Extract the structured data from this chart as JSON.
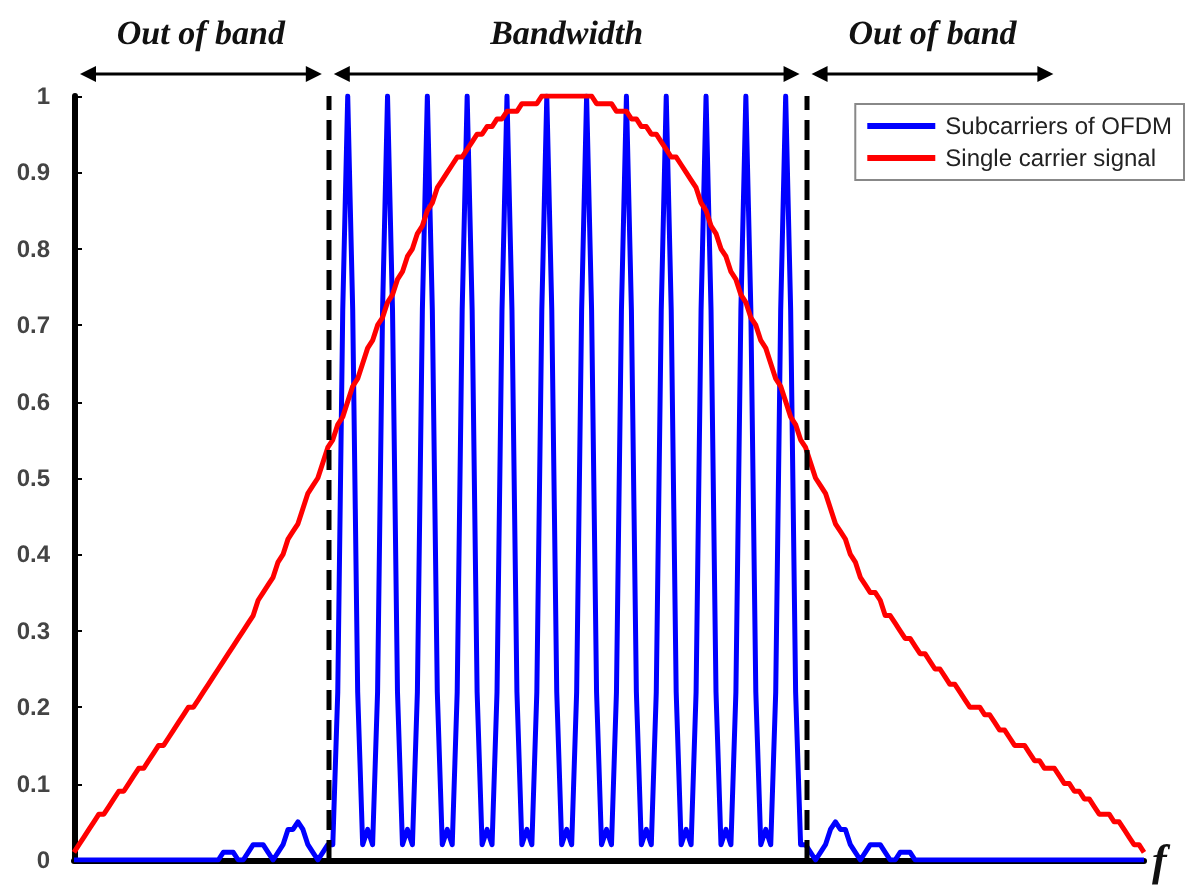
{
  "chart_data": {
    "type": "line",
    "xlabel": "f",
    "categories": [
      null,
      null,
      null,
      null,
      null,
      null,
      null,
      null,
      null,
      null,
      null,
      null,
      null,
      null,
      null,
      null,
      null,
      null,
      null,
      null,
      null,
      null,
      null,
      null,
      null,
      null,
      null,
      null,
      null,
      null,
      null,
      null,
      null,
      null,
      null,
      null,
      null,
      null,
      null,
      null,
      null,
      null,
      null,
      null,
      null,
      null,
      null,
      null,
      null,
      null,
      null,
      null,
      null,
      null,
      null,
      null,
      null,
      null,
      null,
      null,
      null,
      null,
      null,
      null,
      null,
      null,
      null,
      null,
      null,
      null,
      null,
      null,
      null,
      null,
      null,
      null,
      null,
      null,
      null,
      null,
      null,
      null,
      null,
      null,
      null,
      null,
      null,
      null,
      null,
      null,
      null,
      null,
      null,
      null,
      null,
      null,
      null,
      null,
      null,
      null,
      null,
      null,
      null,
      null,
      null,
      null,
      null,
      null,
      null,
      null,
      null,
      null,
      null,
      null,
      null,
      null,
      null,
      null,
      null,
      null,
      null,
      null,
      null,
      null,
      null,
      null,
      null,
      null,
      null,
      null,
      null,
      null,
      null,
      null,
      null,
      null,
      null,
      null,
      null,
      null,
      null,
      null,
      null,
      null,
      null,
      null,
      null,
      null,
      null,
      null,
      null,
      null,
      null,
      null,
      null,
      null,
      null,
      null,
      null,
      null,
      null,
      null,
      null,
      null,
      null,
      null,
      null,
      null,
      null,
      null,
      null,
      null,
      null,
      null,
      null,
      null,
      null,
      null,
      null,
      null,
      null,
      null,
      null,
      null,
      null,
      null,
      null,
      null,
      null,
      null,
      null,
      null,
      null,
      null,
      null,
      null,
      null,
      null,
      null,
      null,
      null,
      null,
      null,
      null,
      null,
      null,
      null,
      null,
      null,
      null,
      null,
      null,
      null,
      null,
      null,
      null
    ],
    "series": [
      {
        "name": "Subcarriers of OFDM",
        "color": "#0000ff",
        "values": [
          0,
          0,
          0,
          0,
          0,
          0,
          0,
          0,
          0,
          0,
          0,
          0,
          0,
          0,
          0,
          0,
          0,
          0,
          0,
          0,
          0,
          0,
          0,
          0,
          0,
          0,
          0,
          0,
          0,
          0,
          0.01,
          0.01,
          0.01,
          0,
          0,
          0.01,
          0.02,
          0.02,
          0.02,
          0.01,
          0,
          0.01,
          0.02,
          0.04,
          0.04,
          0.05,
          0.04,
          0.02,
          0.01,
          0,
          0.01,
          0.02,
          0.02,
          0.22,
          0.72,
          1,
          0.72,
          0.22,
          0.02,
          0.04,
          0.02,
          0.22,
          0.72,
          1,
          0.72,
          0.22,
          0.02,
          0.04,
          0.02,
          0.22,
          0.72,
          1,
          0.72,
          0.22,
          0.02,
          0.04,
          0.02,
          0.22,
          0.72,
          1,
          0.72,
          0.22,
          0.02,
          0.04,
          0.02,
          0.22,
          0.72,
          1,
          0.72,
          0.22,
          0.02,
          0.04,
          0.02,
          0.22,
          0.72,
          1,
          0.72,
          0.22,
          0.02,
          0.04,
          0.02,
          0.22,
          0.72,
          1,
          0.72,
          0.22,
          0.02,
          0.04,
          0.02,
          0.22,
          0.72,
          1,
          0.72,
          0.22,
          0.02,
          0.04,
          0.02,
          0.22,
          0.72,
          1,
          0.72,
          0.22,
          0.02,
          0.04,
          0.02,
          0.22,
          0.72,
          1,
          0.72,
          0.22,
          0.02,
          0.04,
          0.02,
          0.22,
          0.72,
          1,
          0.72,
          0.22,
          0.02,
          0.04,
          0.02,
          0.22,
          0.72,
          1,
          0.72,
          0.22,
          0.02,
          0.02,
          0.01,
          0,
          0.01,
          0.02,
          0.04,
          0.05,
          0.04,
          0.04,
          0.02,
          0.01,
          0,
          0.01,
          0.02,
          0.02,
          0.02,
          0.01,
          0,
          0,
          0.01,
          0.01,
          0.01,
          0,
          0,
          0,
          0,
          0,
          0,
          0,
          0,
          0,
          0,
          0,
          0,
          0,
          0,
          0,
          0,
          0,
          0,
          0,
          0,
          0,
          0,
          0,
          0,
          0,
          0,
          0,
          0,
          0,
          0,
          0,
          0,
          0,
          0,
          0,
          0,
          0,
          0,
          0,
          0,
          0,
          0,
          0,
          0,
          0,
          0,
          0
        ]
      },
      {
        "name": "Single carrier signal",
        "color": "#ff0000",
        "values": [
          0.01,
          0.02,
          0.03,
          0.04,
          0.05,
          0.06,
          0.06,
          0.07,
          0.08,
          0.09,
          0.09,
          0.1,
          0.11,
          0.12,
          0.12,
          0.13,
          0.14,
          0.15,
          0.15,
          0.16,
          0.17,
          0.18,
          0.19,
          0.2,
          0.2,
          0.21,
          0.22,
          0.23,
          0.24,
          0.25,
          0.26,
          0.27,
          0.28,
          0.29,
          0.3,
          0.31,
          0.32,
          0.34,
          0.35,
          0.36,
          0.37,
          0.39,
          0.4,
          0.42,
          0.43,
          0.44,
          0.46,
          0.48,
          0.49,
          0.5,
          0.52,
          0.54,
          0.55,
          0.57,
          0.58,
          0.6,
          0.62,
          0.63,
          0.65,
          0.67,
          0.68,
          0.7,
          0.71,
          0.73,
          0.74,
          0.76,
          0.77,
          0.79,
          0.8,
          0.82,
          0.83,
          0.85,
          0.86,
          0.88,
          0.89,
          0.9,
          0.91,
          0.92,
          0.92,
          0.93,
          0.94,
          0.95,
          0.95,
          0.96,
          0.96,
          0.97,
          0.97,
          0.98,
          0.98,
          0.98,
          0.99,
          0.99,
          0.99,
          0.99,
          1,
          1,
          1,
          1,
          1,
          1,
          1,
          1,
          1,
          1,
          1,
          0.99,
          0.99,
          0.99,
          0.99,
          0.98,
          0.98,
          0.98,
          0.97,
          0.97,
          0.96,
          0.96,
          0.95,
          0.95,
          0.94,
          0.93,
          0.92,
          0.92,
          0.91,
          0.9,
          0.89,
          0.88,
          0.86,
          0.85,
          0.83,
          0.82,
          0.8,
          0.79,
          0.77,
          0.76,
          0.74,
          0.73,
          0.71,
          0.7,
          0.68,
          0.67,
          0.65,
          0.63,
          0.62,
          0.6,
          0.58,
          0.57,
          0.55,
          0.54,
          0.52,
          0.5,
          0.49,
          0.48,
          0.46,
          0.44,
          0.43,
          0.42,
          0.4,
          0.39,
          0.37,
          0.36,
          0.35,
          0.35,
          0.34,
          0.32,
          0.32,
          0.31,
          0.3,
          0.29,
          0.29,
          0.28,
          0.27,
          0.27,
          0.26,
          0.25,
          0.25,
          0.24,
          0.23,
          0.23,
          0.22,
          0.21,
          0.2,
          0.2,
          0.2,
          0.19,
          0.19,
          0.18,
          0.17,
          0.17,
          0.16,
          0.15,
          0.15,
          0.15,
          0.14,
          0.13,
          0.13,
          0.12,
          0.12,
          0.12,
          0.11,
          0.1,
          0.1,
          0.09,
          0.09,
          0.08,
          0.08,
          0.07,
          0.06,
          0.06,
          0.06,
          0.05,
          0.05,
          0.04,
          0.03,
          0.02,
          0.02,
          0.01
        ]
      }
    ],
    "ylim": [
      0,
      1
    ],
    "yticks": [
      0,
      0.1,
      0.2,
      0.3,
      0.4,
      0.5,
      0.6,
      0.7,
      0.8,
      0.9,
      1
    ],
    "annotations": [
      "Out of band",
      "Bandwidth",
      "Out of band"
    ],
    "grid": false,
    "legend": "top right",
    "line_style": "solid",
    "tick_labels": "y"
  }
}
